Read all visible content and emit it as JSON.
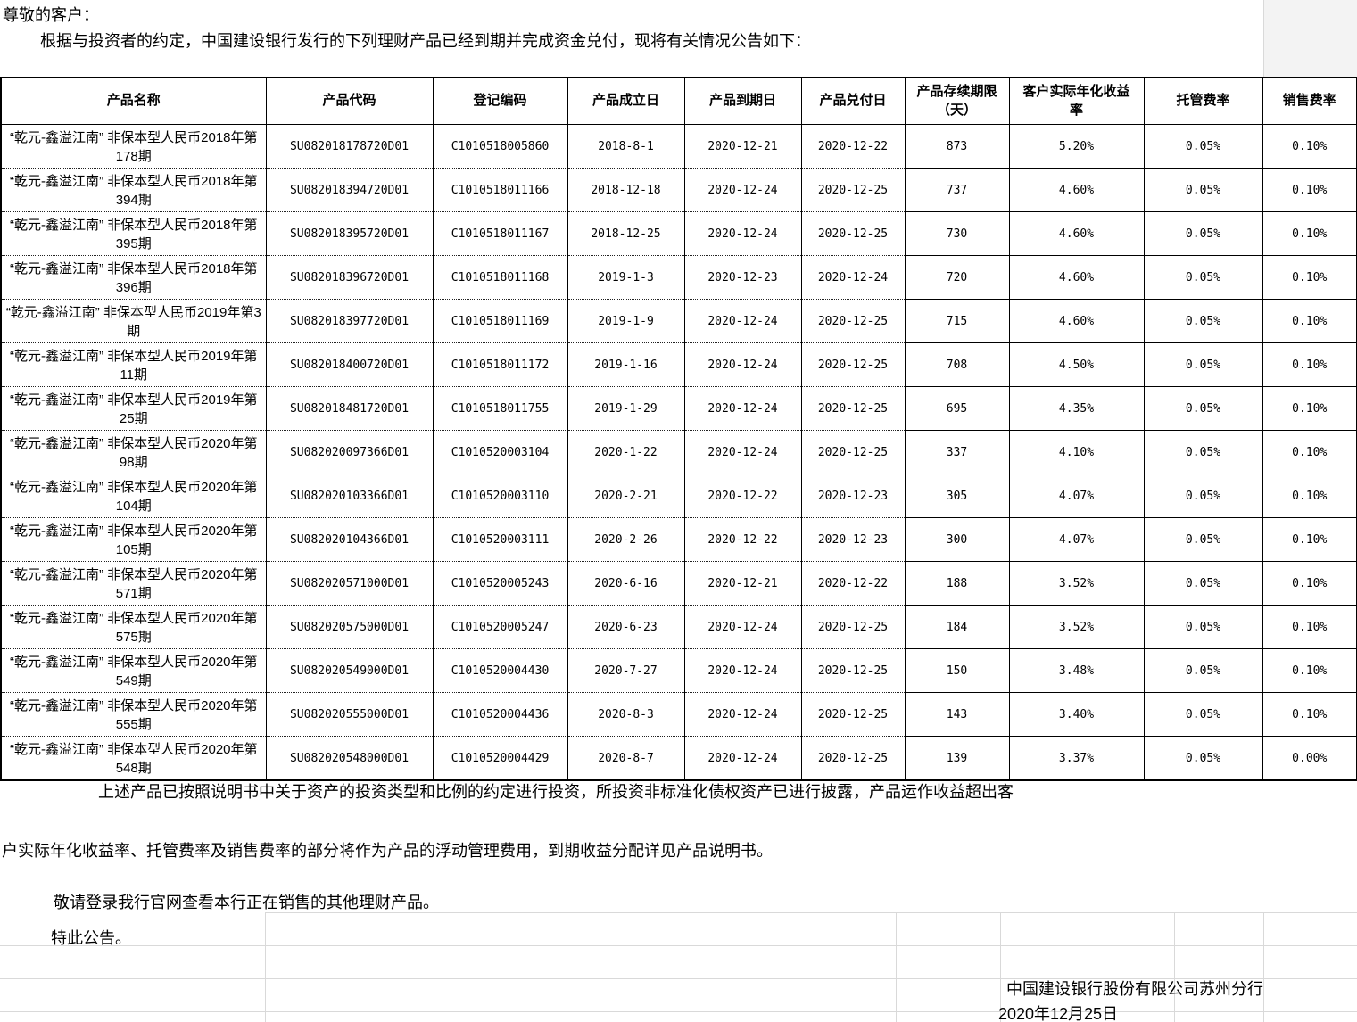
{
  "page": {
    "greeting": "尊敬的客户：",
    "intro": "根据与投资者的约定，中国建设银行发行的下列理财产品已经到期并完成资金兑付，现将有关情况公告如下：",
    "note_line1": "上述产品已按照说明书中关于资产的投资类型和比例的约定进行投资，所投资非标准化债权资产已进行披露，产品运作收益超出客",
    "note_line2": "户实际年化收益率、托管费率及销售费率的部分将作为产品的浮动管理费用，到期收益分配详见产品说明书。",
    "note_line3": "敬请登录我行官网查看本行正在销售的其他理财产品。",
    "note_line4": "特此公告。",
    "signature": "中国建设银行股份有限公司苏州分行",
    "sign_date": "2020年12月25日"
  },
  "table": {
    "headers": [
      "产品名称",
      "产品代码",
      "登记编码",
      "产品成立日",
      "产品到期日",
      "产品兑付日",
      "产品存续期限（天）",
      "客户实际年化收益率",
      "托管费率",
      "销售费率"
    ],
    "rows": [
      [
        "“乾元-鑫溢江南” 非保本型人民币2018年第178期",
        "SU082018178720D01",
        "C1010518005860",
        "2018-8-1",
        "2020-12-21",
        "2020-12-22",
        "873",
        "5.20%",
        "0.05%",
        "0.10%"
      ],
      [
        "“乾元-鑫溢江南” 非保本型人民币2018年第394期",
        "SU082018394720D01",
        "C1010518011166",
        "2018-12-18",
        "2020-12-24",
        "2020-12-25",
        "737",
        "4.60%",
        "0.05%",
        "0.10%"
      ],
      [
        "“乾元-鑫溢江南” 非保本型人民币2018年第395期",
        "SU082018395720D01",
        "C1010518011167",
        "2018-12-25",
        "2020-12-24",
        "2020-12-25",
        "730",
        "4.60%",
        "0.05%",
        "0.10%"
      ],
      [
        "“乾元-鑫溢江南” 非保本型人民币2018年第396期",
        "SU082018396720D01",
        "C1010518011168",
        "2019-1-3",
        "2020-12-23",
        "2020-12-24",
        "720",
        "4.60%",
        "0.05%",
        "0.10%"
      ],
      [
        "“乾元-鑫溢江南” 非保本型人民币2019年第3期",
        "SU082018397720D01",
        "C1010518011169",
        "2019-1-9",
        "2020-12-24",
        "2020-12-25",
        "715",
        "4.60%",
        "0.05%",
        "0.10%"
      ],
      [
        "“乾元-鑫溢江南” 非保本型人民币2019年第11期",
        "SU082018400720D01",
        "C1010518011172",
        "2019-1-16",
        "2020-12-24",
        "2020-12-25",
        "708",
        "4.50%",
        "0.05%",
        "0.10%"
      ],
      [
        "“乾元-鑫溢江南” 非保本型人民币2019年第25期",
        "SU082018481720D01",
        "C1010518011755",
        "2019-1-29",
        "2020-12-24",
        "2020-12-25",
        "695",
        "4.35%",
        "0.05%",
        "0.10%"
      ],
      [
        "“乾元-鑫溢江南” 非保本型人民币2020年第98期",
        "SU082020097366D01",
        "C1010520003104",
        "2020-1-22",
        "2020-12-24",
        "2020-12-25",
        "337",
        "4.10%",
        "0.05%",
        "0.10%"
      ],
      [
        "“乾元-鑫溢江南” 非保本型人民币2020年第104期",
        "SU082020103366D01",
        "C1010520003110",
        "2020-2-21",
        "2020-12-22",
        "2020-12-23",
        "305",
        "4.07%",
        "0.05%",
        "0.10%"
      ],
      [
        "“乾元-鑫溢江南” 非保本型人民币2020年第105期",
        "SU082020104366D01",
        "C1010520003111",
        "2020-2-26",
        "2020-12-22",
        "2020-12-23",
        "300",
        "4.07%",
        "0.05%",
        "0.10%"
      ],
      [
        "“乾元-鑫溢江南” 非保本型人民币2020年第571期",
        "SU082020571000D01",
        "C1010520005243",
        "2020-6-16",
        "2020-12-21",
        "2020-12-22",
        "188",
        "3.52%",
        "0.05%",
        "0.10%"
      ],
      [
        "“乾元-鑫溢江南” 非保本型人民币2020年第575期",
        "SU082020575000D01",
        "C1010520005247",
        "2020-6-23",
        "2020-12-24",
        "2020-12-25",
        "184",
        "3.52%",
        "0.05%",
        "0.10%"
      ],
      [
        "“乾元-鑫溢江南” 非保本型人民币2020年第549期",
        "SU082020549000D01",
        "C1010520004430",
        "2020-7-27",
        "2020-12-24",
        "2020-12-25",
        "150",
        "3.48%",
        "0.05%",
        "0.10%"
      ],
      [
        "“乾元-鑫溢江南” 非保本型人民币2020年第555期",
        "SU082020555000D01",
        "C1010520004436",
        "2020-8-3",
        "2020-12-24",
        "2020-12-25",
        "143",
        "3.40%",
        "0.05%",
        "0.10%"
      ],
      [
        "“乾元-鑫溢江南” 非保本型人民币2020年第548期",
        "SU082020548000D01",
        "C1010520004429",
        "2020-8-7",
        "2020-12-24",
        "2020-12-25",
        "139",
        "3.37%",
        "0.05%",
        "0.00%"
      ]
    ]
  }
}
